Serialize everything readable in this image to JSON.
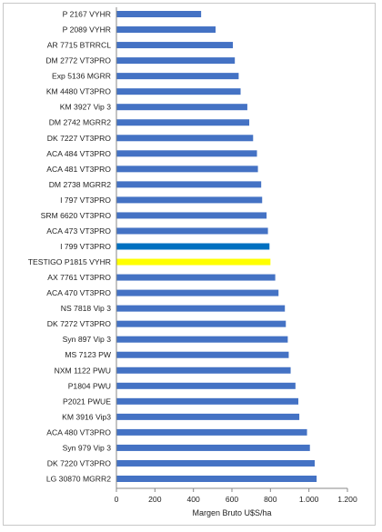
{
  "chart_data": {
    "type": "bar",
    "orientation": "horizontal",
    "categories": [
      "P 2167 VYHR",
      "P 2089 VYHR",
      "AR 7715 BTRRCL",
      "DM 2772 VT3PRO",
      "Exp 5136 MGRR",
      "KM 4480 VT3PRO",
      "KM 3927 Vip 3",
      "DM 2742 MGRR2",
      "DK 7227 VT3PRO",
      "ACA 484 VT3PRO",
      "ACA 481 VT3PRO",
      "DM 2738 MGRR2",
      "I 797 VT3PRO",
      "SRM 6620 VT3PRO",
      "ACA 473 VT3PRO",
      "I 799 VT3PRO",
      "TESTIGO P1815 VYHR",
      "AX 7761 VT3PRO",
      "ACA 470 VT3PRO",
      "NS 7818 Vip 3",
      "DK 7272 VT3PRO",
      "Syn 897 Vip 3",
      "MS 7123 PW",
      "NXM 1122 PWU",
      "P1804 PWU",
      "P2021 PWUE",
      "KM 3916 Vip3",
      "ACA 480 VT3PRO",
      "Syn 979 Vip 3",
      "DK 7220 VT3PRO",
      "LG 30870 MGRR2"
    ],
    "values": [
      440,
      515,
      605,
      615,
      635,
      645,
      680,
      690,
      710,
      730,
      735,
      752,
      757,
      780,
      787,
      795,
      800,
      825,
      842,
      875,
      880,
      890,
      895,
      905,
      930,
      945,
      950,
      990,
      1005,
      1030,
      1040
    ],
    "bar_colors": {
      "default": "#4472c4",
      "highlight": "#0070c0",
      "testigo": "#ffff00"
    },
    "highlight_index": 15,
    "testigo_index": 16,
    "xlabel": "Margen Bruto U$S/ha",
    "xlim": [
      0,
      1200
    ],
    "xticks": [
      0,
      200,
      400,
      600,
      800,
      1000,
      1200
    ],
    "xtick_labels": [
      "0",
      "200",
      "400",
      "600",
      "800",
      "1.000",
      "1.200"
    ],
    "grid": false,
    "legend": "none"
  }
}
